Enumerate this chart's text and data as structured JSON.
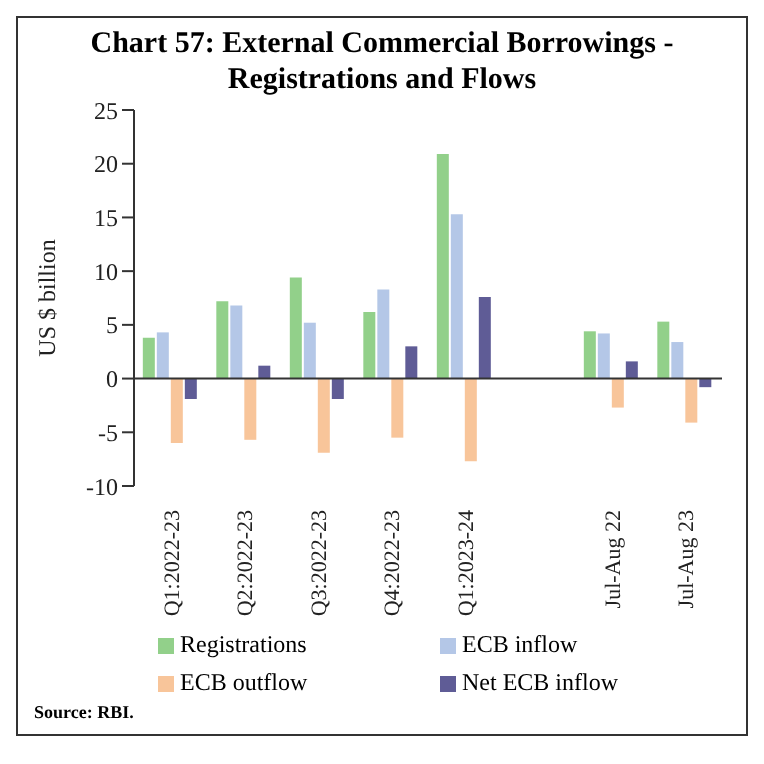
{
  "chart_data": {
    "type": "bar",
    "title": "Chart 57: External Commercial Borrowings - Registrations and Flows",
    "ylabel": "US $ billion",
    "categories": [
      "Q1:2022-23",
      "Q2:2022-23",
      "Q3:2022-23",
      "Q4:2022-23",
      "Q1:2023-24",
      null,
      "Jul-Aug 22",
      "Jul-Aug 23"
    ],
    "series": [
      {
        "name": "Registrations",
        "color": "#92d08a",
        "values": [
          3.8,
          7.2,
          9.4,
          6.2,
          20.9,
          null,
          4.4,
          5.3
        ]
      },
      {
        "name": "ECB inflow",
        "color": "#b4c7e7",
        "values": [
          4.3,
          6.8,
          5.2,
          8.3,
          15.3,
          null,
          4.2,
          3.4
        ]
      },
      {
        "name": "ECB outflow",
        "color": "#f8c59a",
        "values": [
          -6.0,
          -5.7,
          -6.9,
          -5.5,
          -7.7,
          null,
          -2.7,
          -4.1
        ]
      },
      {
        "name": "Net ECB inflow",
        "color": "#5f5c96",
        "values": [
          -1.9,
          1.2,
          -1.9,
          3.0,
          7.6,
          null,
          1.6,
          -0.8
        ]
      }
    ],
    "ylim": [
      -10,
      25
    ],
    "yticks": [
      -10,
      -5,
      0,
      5,
      10,
      15,
      20,
      25
    ],
    "legend": "bottom",
    "annotations": [
      "Source: RBI."
    ]
  }
}
